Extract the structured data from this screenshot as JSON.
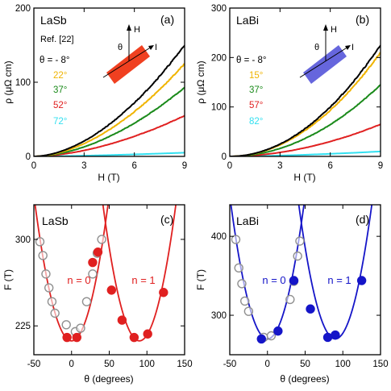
{
  "colors": {
    "black": "#000000",
    "orange": "#f0b400",
    "green": "#1a8a1a",
    "red": "#e02020",
    "cyan": "#33e0f0",
    "blue": "#1515c8",
    "hollow": "#909090",
    "sample_lasb": "#f04020",
    "sample_labi": "#6666dd"
  },
  "chart_data": [
    {
      "type": "line",
      "panel": "(a)",
      "material": "LaSb",
      "ref": "Ref. [22]",
      "xlabel": "H (T)",
      "ylabel": "ρ (μΩ cm)",
      "xlim": [
        0,
        9
      ],
      "ylim": [
        0,
        200
      ],
      "xticks": [
        0,
        3,
        6,
        9
      ],
      "yticks": [
        0,
        100,
        200
      ],
      "theta_prefix": "θ = - 8°",
      "inset": {
        "H": "H",
        "I": "I",
        "theta": "θ"
      },
      "series": [
        {
          "name": "θ = - 8°",
          "label": "- 8°",
          "color": "#000000",
          "y_at_9T": 150,
          "exponent": 1.8
        },
        {
          "name": "22°",
          "label": "22°",
          "color": "#f0b400",
          "y_at_9T": 125,
          "exponent": 1.8
        },
        {
          "name": "37°",
          "label": "37°",
          "color": "#1a8a1a",
          "y_at_9T": 93,
          "exponent": 1.8
        },
        {
          "name": "52°",
          "label": "52°",
          "color": "#e02020",
          "y_at_9T": 55,
          "exponent": 1.75
        },
        {
          "name": "72°",
          "label": "72°",
          "color": "#33e0f0",
          "y_at_9T": 5,
          "exponent": 1.5
        }
      ]
    },
    {
      "type": "line",
      "panel": "(b)",
      "material": "LaBi",
      "xlabel": "H (T)",
      "ylabel": "ρ (μΩ cm)",
      "xlim": [
        0,
        9
      ],
      "ylim": [
        0,
        300
      ],
      "xticks": [
        0,
        3,
        6,
        9
      ],
      "yticks": [
        0,
        100,
        200,
        300
      ],
      "theta_prefix": "θ = - 8°",
      "inset": {
        "H": "H",
        "I": "I",
        "theta": "θ"
      },
      "series": [
        {
          "name": "θ = - 8°",
          "label": "- 8°",
          "color": "#000000",
          "y_at_9T": 225,
          "exponent": 2.0
        },
        {
          "name": "15°",
          "label": "15°",
          "color": "#f0b400",
          "y_at_9T": 210,
          "exponent": 2.0
        },
        {
          "name": "37°",
          "label": "37°",
          "color": "#1a8a1a",
          "y_at_9T": 145,
          "exponent": 2.0
        },
        {
          "name": "57°",
          "label": "57°",
          "color": "#e02020",
          "y_at_9T": 65,
          "exponent": 1.9
        },
        {
          "name": "82°",
          "label": "82°",
          "color": "#33e0f0",
          "y_at_9T": 10,
          "exponent": 1.6
        }
      ]
    },
    {
      "type": "scatter",
      "panel": "(c)",
      "material": "LaSb",
      "xlabel": "θ (degrees)",
      "ylabel": "F (T)",
      "xlim": [
        -50,
        150
      ],
      "ylim": [
        200,
        330
      ],
      "xticks": [
        -50,
        0,
        50,
        100,
        150
      ],
      "yticks": [
        225,
        300
      ],
      "n0_label": "n = 0",
      "n1_label": "n = 1",
      "line_color": "#e02020",
      "fits": [
        {
          "name": "n = 0",
          "center": 0,
          "min": 212,
          "k": 0.0505
        },
        {
          "name": "n = 1",
          "center": 90,
          "min": 212,
          "k": 0.0505
        }
      ],
      "hollow_points": [
        [
          -42,
          298
        ],
        [
          -38,
          286
        ],
        [
          -34,
          270
        ],
        [
          -30,
          258
        ],
        [
          -26,
          246
        ],
        [
          -22,
          236
        ],
        [
          -7,
          226
        ],
        [
          5,
          220
        ],
        [
          12,
          223
        ],
        [
          20,
          246
        ],
        [
          28,
          270
        ],
        [
          34,
          288
        ],
        [
          40,
          300
        ]
      ],
      "filled_points": [
        [
          -6,
          215
        ],
        [
          7,
          215
        ],
        [
          28,
          280
        ],
        [
          35,
          289
        ],
        [
          53,
          256
        ],
        [
          67,
          230
        ],
        [
          83,
          215
        ],
        [
          101,
          218
        ],
        [
          122,
          254
        ]
      ]
    },
    {
      "type": "scatter",
      "panel": "(d)",
      "material": "LaBi",
      "xlabel": "θ (degrees)",
      "ylabel": "F (T)",
      "xlim": [
        -50,
        150
      ],
      "ylim": [
        250,
        440
      ],
      "xticks": [
        -50,
        0,
        50,
        100,
        150
      ],
      "yticks": [
        300,
        400
      ],
      "n0_label": "n = 0",
      "n1_label": "n = 1",
      "line_color": "#1515c8",
      "fits": [
        {
          "name": "n = 0",
          "center": 0,
          "min": 270,
          "k": 0.0725
        },
        {
          "name": "n = 1",
          "center": 90,
          "min": 270,
          "k": 0.0725
        }
      ],
      "hollow_points": [
        [
          -42,
          396
        ],
        [
          -38,
          360
        ],
        [
          -34,
          340
        ],
        [
          -30,
          318
        ],
        [
          -25,
          305
        ],
        [
          -5,
          272
        ],
        [
          5,
          274
        ],
        [
          30,
          320
        ],
        [
          35,
          343
        ],
        [
          40,
          375
        ],
        [
          43,
          394
        ]
      ],
      "filled_points": [
        [
          -8,
          270
        ],
        [
          14,
          280
        ],
        [
          35,
          344
        ],
        [
          57,
          308
        ],
        [
          80,
          272
        ],
        [
          90,
          275
        ],
        [
          125,
          344
        ]
      ]
    }
  ]
}
